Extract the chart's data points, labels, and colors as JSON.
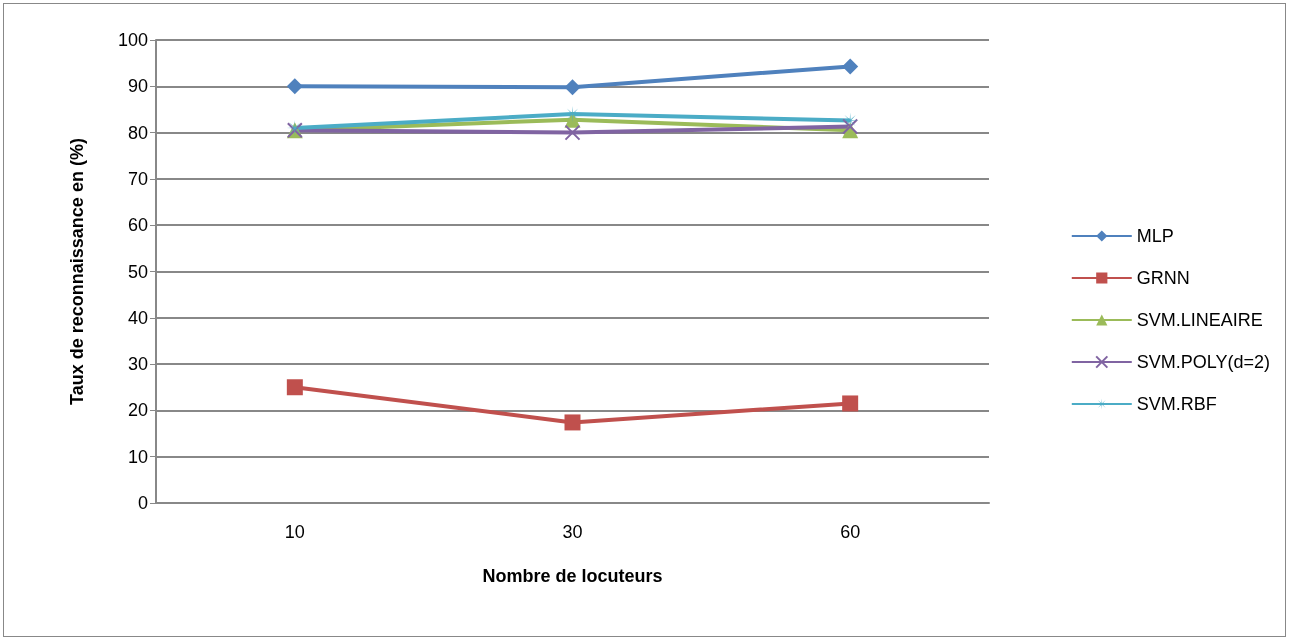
{
  "chart_data": {
    "type": "line",
    "xlabel": "Nombre de locuteurs",
    "ylabel": "Taux de reconnaissance en (%)",
    "categories": [
      "10",
      "30",
      "60"
    ],
    "series": [
      {
        "name": "MLP",
        "color": "#4f81bd",
        "marker": "diamond",
        "values": [
          90,
          89.8,
          94.3
        ]
      },
      {
        "name": "GRNN",
        "color": "#c0504d",
        "marker": "square",
        "values": [
          25,
          17.4,
          21.5
        ]
      },
      {
        "name": "SVM.LINEAIRE",
        "color": "#9bbb59",
        "marker": "triangle",
        "values": [
          80.5,
          82.8,
          80.5
        ]
      },
      {
        "name": "SVM.POLY(d=2)",
        "color": "#8064a2",
        "marker": "cross",
        "values": [
          80.5,
          80,
          81.3
        ]
      },
      {
        "name": "SVM.RBF",
        "color": "#4bacc6",
        "marker": "star",
        "values": [
          81,
          84,
          82.6
        ]
      }
    ],
    "ylim": [
      0,
      100
    ],
    "yticks": [
      0,
      10,
      20,
      30,
      40,
      50,
      60,
      70,
      80,
      90,
      100
    ],
    "grid": "y",
    "legend": "right"
  }
}
